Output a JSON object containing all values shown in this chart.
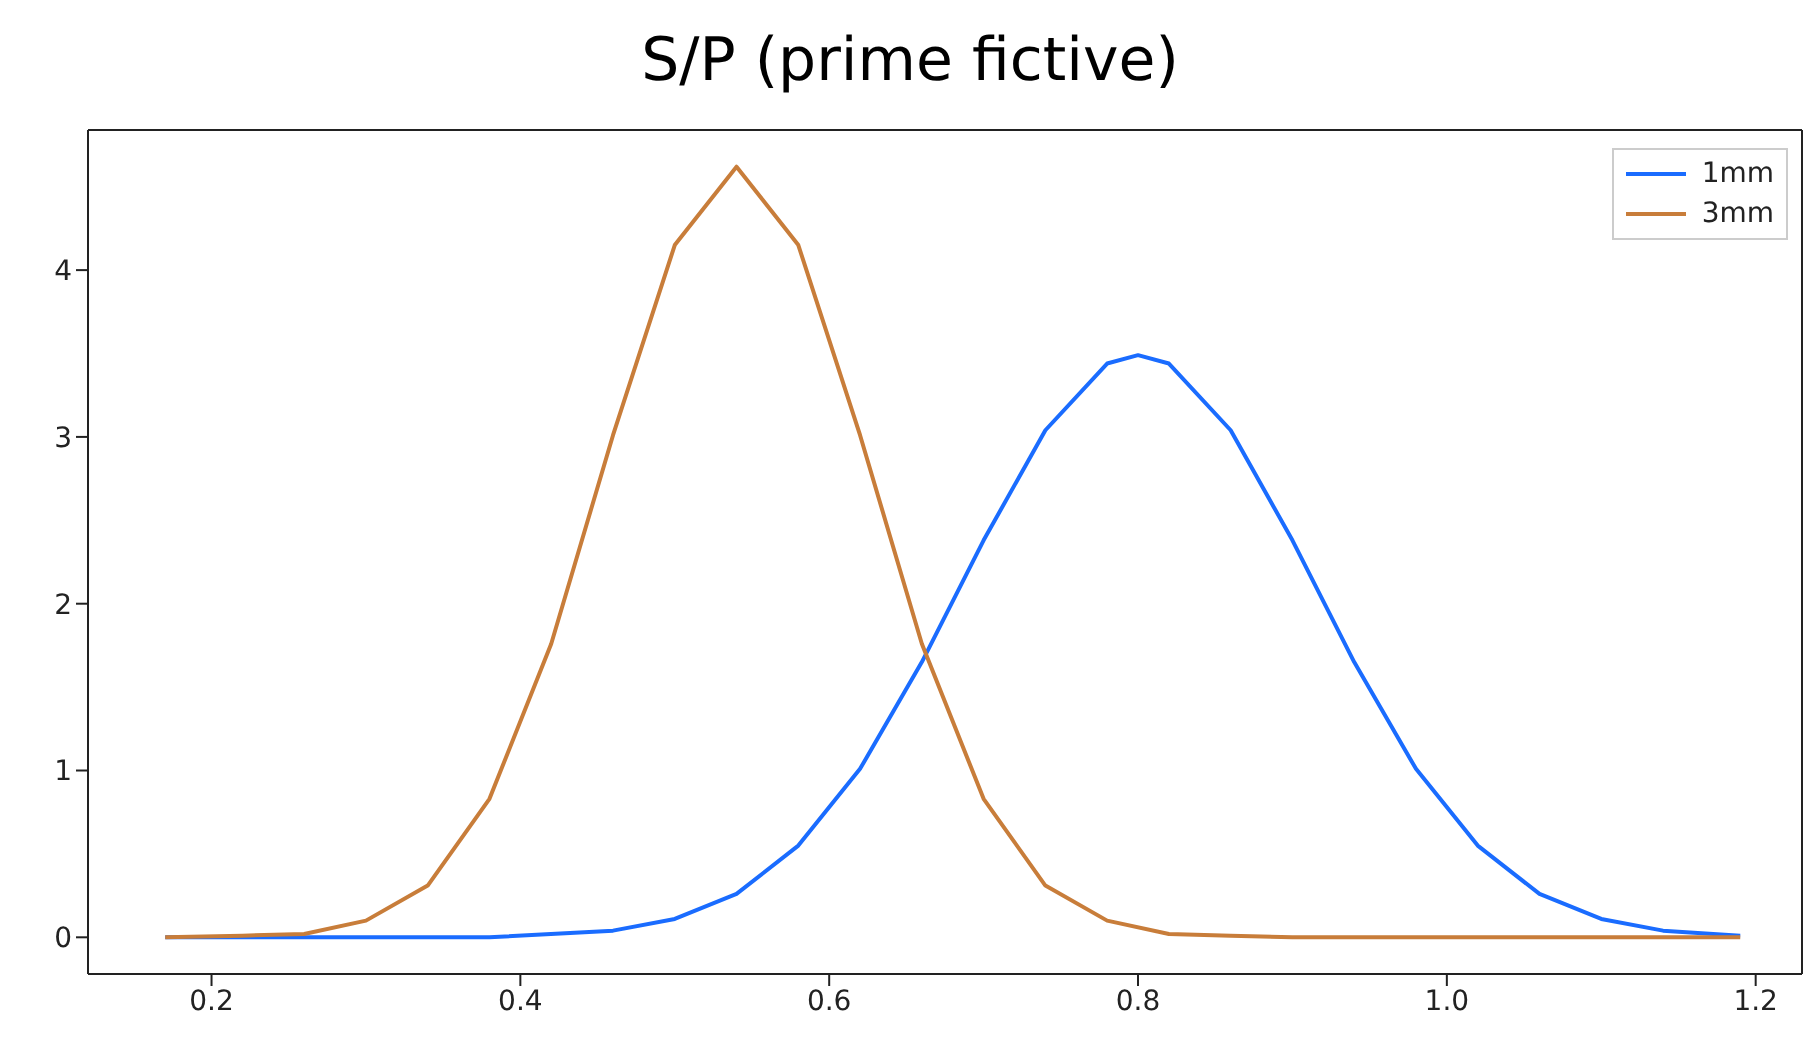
{
  "chart_data": {
    "type": "line",
    "title": "S/P (prime fictive)",
    "xlim": [
      0.12,
      1.23
    ],
    "xticks": [
      {
        "value": 0.2,
        "label": "0.2"
      },
      {
        "value": 0.4,
        "label": "0.4"
      },
      {
        "value": 0.6,
        "label": "0.6"
      },
      {
        "value": 0.8,
        "label": "0.8"
      },
      {
        "value": 1.0,
        "label": "1.0"
      },
      {
        "value": 1.2,
        "label": "1.2"
      }
    ],
    "ylim": [
      -0.22,
      4.84
    ],
    "yticks": [
      0,
      1,
      2,
      3,
      4
    ],
    "grid": false,
    "legend": "top right",
    "marker": "none",
    "line_style": "solid",
    "series": [
      {
        "name": "1mm",
        "color": "#1a6cff",
        "x": [
          0.17,
          0.3,
          0.38,
          0.46,
          0.5,
          0.54,
          0.58,
          0.62,
          0.66,
          0.7,
          0.74,
          0.78,
          0.8,
          0.82,
          0.86,
          0.9,
          0.94,
          0.98,
          1.02,
          1.06,
          1.1,
          1.14,
          1.19
        ],
        "values": [
          0,
          0,
          0,
          0.04,
          0.11,
          0.26,
          0.55,
          1.01,
          1.65,
          2.38,
          3.04,
          3.44,
          3.49,
          3.44,
          3.04,
          2.38,
          1.65,
          1.01,
          0.55,
          0.26,
          0.11,
          0.04,
          0.01
        ]
      },
      {
        "name": "3mm",
        "color": "#c87d3a",
        "x": [
          0.17,
          0.22,
          0.26,
          0.3,
          0.34,
          0.38,
          0.42,
          0.46,
          0.5,
          0.54,
          0.58,
          0.62,
          0.66,
          0.7,
          0.74,
          0.78,
          0.82,
          0.86,
          0.9,
          1.0,
          1.1,
          1.19
        ],
        "values": [
          0,
          0.01,
          0.02,
          0.1,
          0.31,
          0.83,
          1.76,
          3.01,
          4.15,
          4.62,
          4.15,
          3.01,
          1.76,
          0.83,
          0.31,
          0.1,
          0.02,
          0.01,
          0,
          0,
          0,
          0
        ]
      }
    ]
  }
}
